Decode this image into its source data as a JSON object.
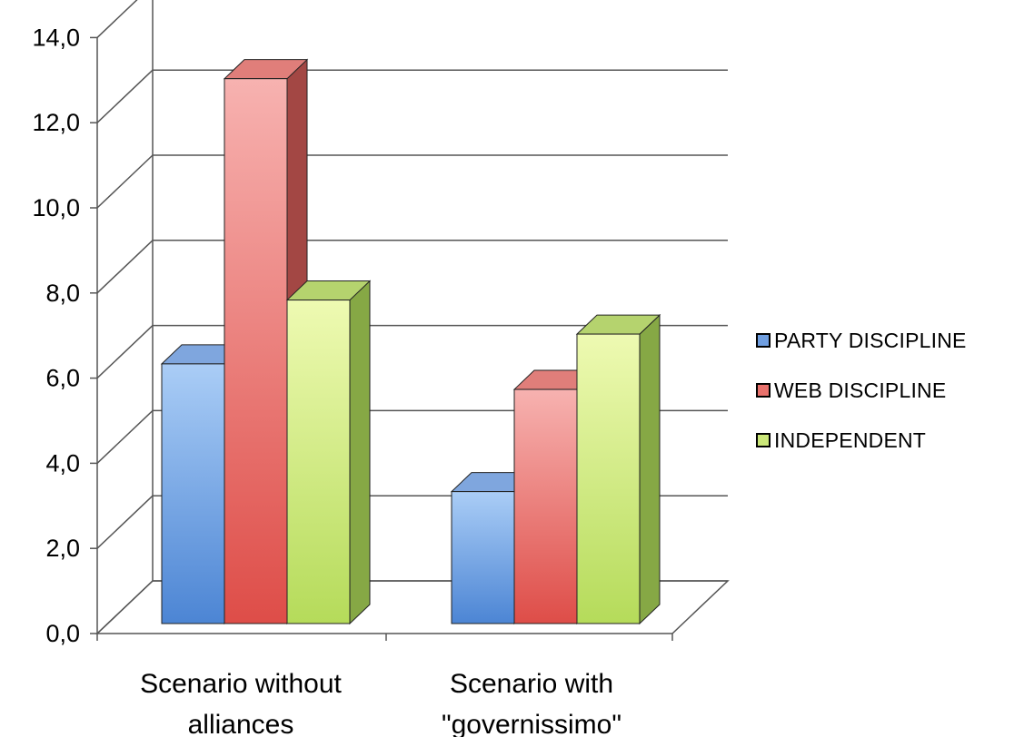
{
  "chart_data": {
    "type": "bar",
    "categories": [
      [
        "Scenario without",
        "alliances"
      ],
      [
        "Scenario with",
        "\"governissimo\""
      ]
    ],
    "series": [
      {
        "name": "PARTY DISCIPLINE",
        "values": [
          6.1,
          3.1
        ]
      },
      {
        "name": "WEB DISCIPLINE",
        "values": [
          12.8,
          5.5
        ]
      },
      {
        "name": "INDEPENDENT",
        "values": [
          7.6,
          6.8
        ]
      }
    ],
    "yticks": [
      "0,0",
      "2,0",
      "4,0",
      "6,0",
      "8,0",
      "10,0",
      "12,0",
      "14,0"
    ],
    "ylim": [
      0,
      14
    ],
    "grid": true,
    "legend_position": "right",
    "colors": {
      "PARTY DISCIPLINE": "#5b8fd6",
      "WEB DISCIPLINE": "#e05a55",
      "INDEPENDENT": "#bfe16a"
    }
  }
}
